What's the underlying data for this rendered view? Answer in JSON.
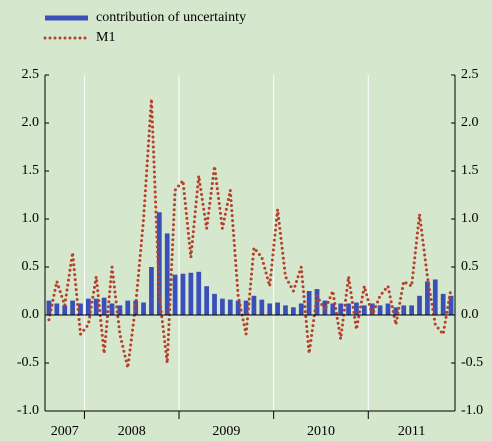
{
  "chart_data": {
    "type": "bar_line",
    "years": [
      "2007",
      "2008",
      "2009",
      "2010",
      "2011"
    ],
    "year_months": [
      5,
      12,
      12,
      12,
      11
    ],
    "series": [
      {
        "name": "contribution of uncertainty",
        "type": "bar",
        "color": "#3a50b8",
        "values": [
          0.15,
          0.12,
          0.1,
          0.15,
          0.12,
          0.17,
          0.17,
          0.18,
          0.12,
          0.1,
          0.15,
          0.15,
          0.13,
          0.5,
          1.07,
          0.85,
          0.42,
          0.43,
          0.44,
          0.45,
          0.3,
          0.22,
          0.17,
          0.16,
          0.15,
          0.15,
          0.2,
          0.16,
          0.12,
          0.13,
          0.1,
          0.08,
          0.12,
          0.25,
          0.27,
          0.15,
          0.12,
          0.12,
          0.12,
          0.13,
          0.1,
          0.12,
          0.1,
          0.12,
          0.08,
          0.1,
          0.1,
          0.2,
          0.35,
          0.37,
          0.22,
          0.2
        ]
      },
      {
        "name": "M1",
        "type": "line",
        "color": "#b5402b",
        "values": [
          -0.05,
          0.35,
          0.1,
          0.65,
          -0.2,
          -0.1,
          0.4,
          -0.4,
          0.5,
          -0.2,
          -0.55,
          0.1,
          1.0,
          2.25,
          0.2,
          -0.5,
          1.3,
          1.4,
          0.6,
          1.45,
          0.9,
          1.55,
          0.9,
          1.3,
          0.2,
          -0.2,
          0.7,
          0.6,
          0.3,
          1.1,
          0.4,
          0.25,
          0.5,
          -0.4,
          0.2,
          0.05,
          0.25,
          -0.25,
          0.4,
          -0.15,
          0.3,
          0.0,
          0.2,
          0.3,
          -0.1,
          0.35,
          0.3,
          1.05,
          0.4,
          -0.1,
          -0.2,
          0.28
        ]
      }
    ],
    "ylim": [
      -1.0,
      2.5
    ],
    "yticks": [
      2.5,
      {
        "value": 2.0,
        "label": "2.0"
      },
      1.5,
      {
        "value": 1.0,
        "label": "1.0"
      },
      0.5,
      {
        "value": 0.0,
        "label": "0.0"
      },
      -0.5,
      {
        "value": -1.0,
        "label": "-1.0"
      }
    ],
    "y2lim": [
      -1.0,
      2.5
    ],
    "y2ticks": [
      2.5,
      {
        "value": 2.0,
        "label": "2.0"
      },
      1.5,
      {
        "value": 1.0,
        "label": "1.0"
      },
      0.5,
      {
        "value": 0.0,
        "label": "0.0"
      },
      -0.5,
      {
        "value": -1.0,
        "label": "-1.0"
      }
    ]
  }
}
